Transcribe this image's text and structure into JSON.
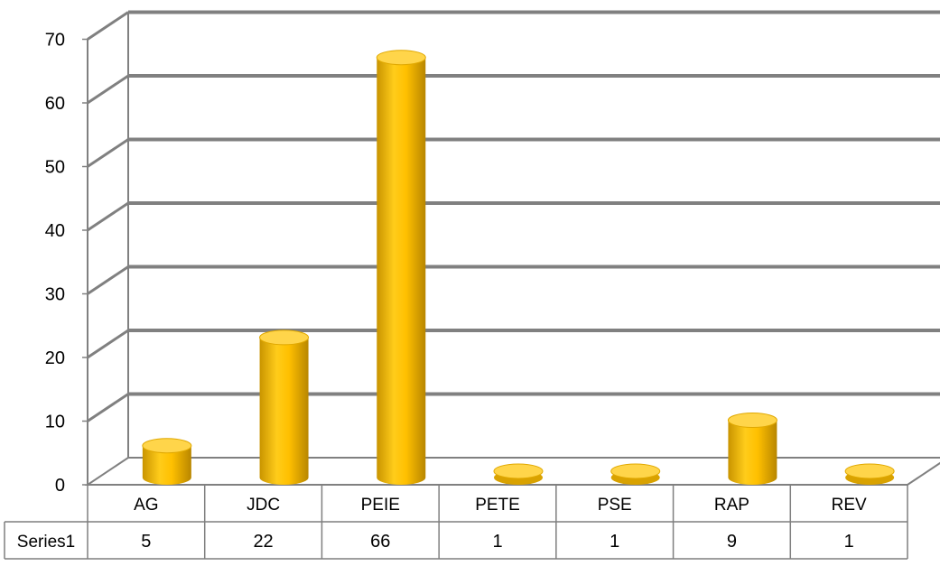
{
  "chart_data": {
    "type": "bar",
    "title": "",
    "xlabel": "",
    "ylabel": "",
    "categories": [
      "AG",
      "JDC",
      "PEIE",
      "PETE",
      "PSE",
      "RAP",
      "REV"
    ],
    "series": [
      {
        "name": "Series1",
        "values": [
          5,
          22,
          66,
          1,
          1,
          9,
          1
        ]
      }
    ],
    "ylim": [
      0,
      70
    ],
    "yticks": [
      0,
      10,
      20,
      30,
      40,
      50,
      60,
      70
    ],
    "grid": true,
    "legend": "none",
    "data_table": true,
    "style": "3d-cylinder",
    "colors": {
      "bar": "#FFC000",
      "bar_dark": "#C79200",
      "bar_top": "#FFD54A",
      "grid": "#808080",
      "text": "#000000"
    }
  }
}
